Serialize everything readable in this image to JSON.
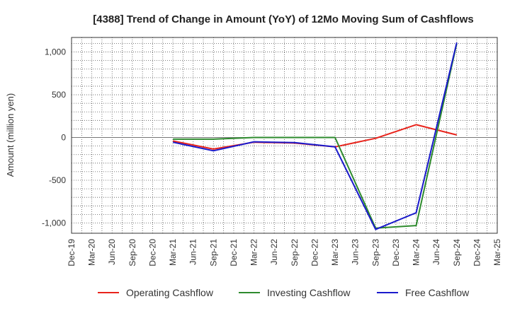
{
  "chart_data": {
    "type": "line",
    "title": "[4388]  Trend of Change in Amount (YoY) of 12Mo Moving Sum of Cashflows",
    "xlabel": "",
    "ylabel": "Amount (million yen)",
    "ylim": [
      -1120,
      1170
    ],
    "yticks": [
      1000,
      500,
      0,
      -500,
      -1000
    ],
    "ytick_labels": [
      "1,000",
      "500",
      "0",
      "-500",
      "-1,000"
    ],
    "categories": [
      "Dec-19",
      "Mar-20",
      "Jun-20",
      "Sep-20",
      "Dec-20",
      "Mar-21",
      "Jun-21",
      "Sep-21",
      "Dec-21",
      "Mar-22",
      "Jun-22",
      "Sep-22",
      "Dec-22",
      "Mar-23",
      "Jun-23",
      "Sep-23",
      "Dec-23",
      "Mar-24",
      "Jun-24",
      "Sep-24",
      "Dec-24",
      "Mar-25"
    ],
    "grid": true,
    "legend_position": "bottom",
    "series": [
      {
        "name": "Operating Cashflow",
        "color": "#e8241c",
        "values": [
          null,
          null,
          null,
          null,
          null,
          -40,
          null,
          -135,
          null,
          -55,
          null,
          -65,
          null,
          -110,
          null,
          -10,
          null,
          150,
          null,
          30,
          null,
          null
        ]
      },
      {
        "name": "Investing Cashflow",
        "color": "#2e8b2e",
        "values": [
          null,
          null,
          null,
          null,
          null,
          -20,
          null,
          -20,
          null,
          0,
          null,
          0,
          null,
          0,
          null,
          -1060,
          null,
          -1030,
          null,
          1100,
          null,
          null
        ]
      },
      {
        "name": "Free Cashflow",
        "color": "#1a1acc",
        "values": [
          null,
          null,
          null,
          null,
          null,
          -55,
          null,
          -155,
          null,
          -50,
          null,
          -60,
          null,
          -110,
          null,
          -1075,
          null,
          -880,
          null,
          1110,
          null,
          null
        ]
      }
    ]
  }
}
